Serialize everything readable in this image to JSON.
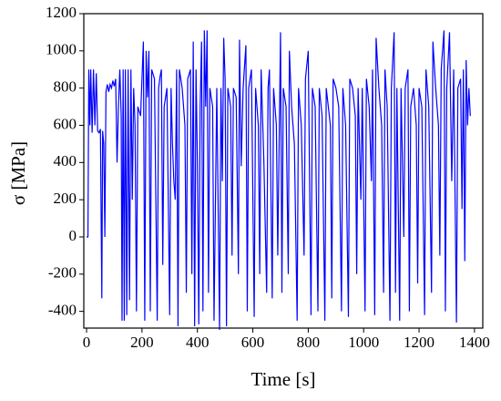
{
  "chart_data": {
    "type": "line",
    "x_label": "Time [s]",
    "y_label": "σ [MPa]",
    "xlim": [
      -10,
      1430
    ],
    "ylim": [
      -490,
      1200
    ],
    "xticks": [
      0,
      200,
      400,
      600,
      800,
      1000,
      1200,
      1400
    ],
    "yticks": [
      -400,
      -200,
      0,
      200,
      400,
      600,
      800,
      1000,
      1200
    ],
    "x": [
      0,
      5,
      8,
      12,
      15,
      20,
      25,
      30,
      35,
      40,
      45,
      50,
      55,
      58,
      62,
      66,
      70,
      75,
      80,
      85,
      90,
      95,
      100,
      105,
      110,
      115,
      120,
      125,
      128,
      132,
      136,
      140,
      145,
      150,
      155,
      160,
      165,
      170,
      175,
      180,
      185,
      195,
      205,
      210,
      215,
      220,
      225,
      230,
      235,
      245,
      255,
      260,
      265,
      270,
      275,
      280,
      290,
      300,
      305,
      310,
      315,
      320,
      325,
      330,
      335,
      345,
      355,
      360,
      365,
      375,
      380,
      385,
      390,
      395,
      400,
      405,
      410,
      415,
      420,
      425,
      430,
      435,
      440,
      445,
      455,
      460,
      470,
      480,
      485,
      490,
      495,
      500,
      505,
      510,
      520,
      525,
      530,
      540,
      548,
      552,
      558,
      565,
      575,
      580,
      585,
      595,
      605,
      610,
      620,
      625,
      630,
      640,
      650,
      655,
      660,
      670,
      675,
      685,
      690,
      700,
      705,
      710,
      720,
      728,
      732,
      740,
      750,
      760,
      765,
      775,
      785,
      790,
      800,
      810,
      815,
      825,
      835,
      840,
      850,
      860,
      865,
      880,
      885,
      890,
      900,
      910,
      920,
      925,
      935,
      945,
      950,
      960,
      970,
      975,
      980,
      990,
      995,
      1005,
      1010,
      1020,
      1028,
      1032,
      1040,
      1045,
      1055,
      1065,
      1072,
      1077,
      1085,
      1095,
      1100,
      1110,
      1115,
      1120,
      1130,
      1135,
      1145,
      1150,
      1160,
      1165,
      1170,
      1180,
      1190,
      1195,
      1200,
      1210,
      1220,
      1225,
      1235,
      1245,
      1250,
      1260,
      1270,
      1275,
      1280,
      1290,
      1295,
      1300,
      1310,
      1318,
      1325,
      1335,
      1340,
      1350,
      1355,
      1360,
      1365,
      1370,
      1375,
      1380,
      1385
    ],
    "series": [
      {
        "color": "#0000ff",
        "values": [
          0,
          0,
          900,
          600,
          900,
          560,
          900,
          600,
          880,
          570,
          560,
          580,
          -330,
          570,
          500,
          0,
          780,
          820,
          780,
          820,
          800,
          840,
          810,
          850,
          400,
          700,
          900,
          650,
          -450,
          900,
          -450,
          900,
          -420,
          900,
          -340,
          900,
          200,
          800,
          600,
          -400,
          700,
          650,
          1050,
          -450,
          1000,
          750,
          1000,
          -400,
          900,
          850,
          -450,
          800,
          860,
          900,
          -150,
          700,
          800,
          -420,
          800,
          500,
          300,
          200,
          900,
          -480,
          900,
          800,
          600,
          -300,
          850,
          900,
          -200,
          1050,
          -480,
          900,
          400,
          -470,
          700,
          1050,
          -400,
          1110,
          700,
          1110,
          -300,
          800,
          700,
          -450,
          800,
          -500,
          800,
          300,
          1070,
          850,
          -480,
          800,
          700,
          -100,
          800,
          750,
          -200,
          1060,
          380,
          800,
          1030,
          -400,
          800,
          900,
          -430,
          800,
          600,
          -200,
          900,
          400,
          -300,
          800,
          900,
          -330,
          800,
          600,
          -100,
          1100,
          -300,
          800,
          700,
          -200,
          1000,
          700,
          500,
          -450,
          800,
          600,
          -100,
          850,
          1000,
          -420,
          800,
          700,
          -400,
          800,
          650,
          -450,
          800,
          600,
          -330,
          850,
          800,
          700,
          -400,
          800,
          600,
          -430,
          850,
          800,
          650,
          -200,
          800,
          200,
          800,
          -400,
          850,
          700,
          300,
          900,
          -420,
          1070,
          800,
          600,
          -300,
          900,
          700,
          -450,
          800,
          1100,
          -300,
          800,
          -450,
          800,
          0,
          800,
          900,
          -400,
          700,
          800,
          600,
          -250,
          800,
          700,
          -420,
          900,
          700,
          -300,
          1050,
          800,
          600,
          -100,
          900,
          1110,
          -400,
          800,
          1100,
          300,
          900,
          -460,
          800,
          850,
          150,
          900,
          -130,
          950,
          600,
          800,
          650
        ]
      }
    ]
  }
}
